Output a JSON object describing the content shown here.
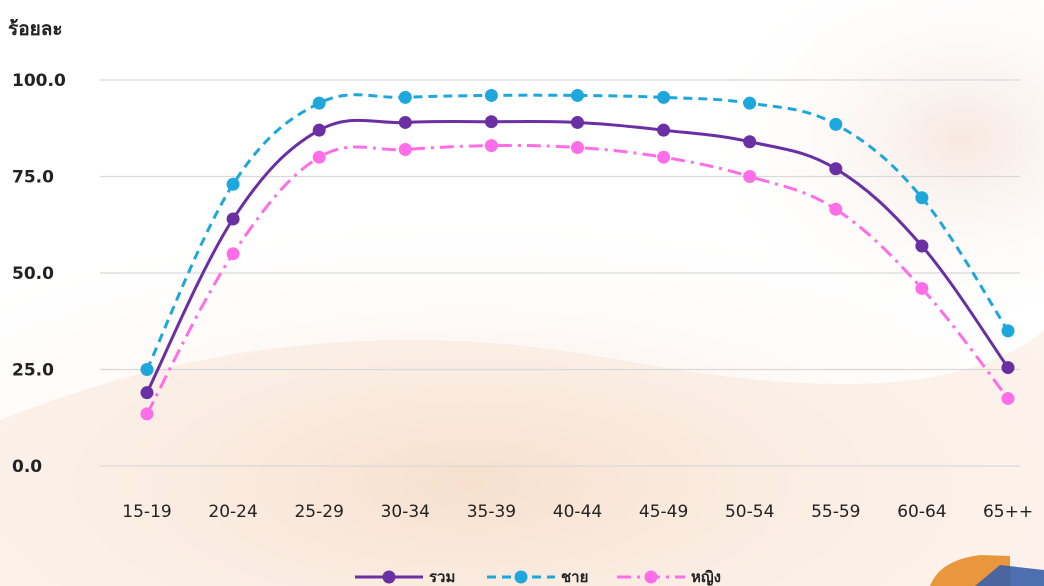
{
  "chart_data": {
    "type": "line",
    "ylabel": "ร้อยละ",
    "categories": [
      "15-19",
      "20-24",
      "25-29",
      "30-34",
      "35-39",
      "40-44",
      "45-49",
      "50-54",
      "55-59",
      "60-64",
      "65++"
    ],
    "ylim": [
      0,
      100
    ],
    "yticks": [
      0,
      25,
      50,
      75,
      100
    ],
    "ytick_labels": [
      "0.0",
      "25.0",
      "50.0",
      "75.0",
      "100.0"
    ],
    "grid": true,
    "legend_position": "bottom-center",
    "series": [
      {
        "name": "รวม",
        "color": "#6a2fa3",
        "dash": "solid",
        "values": [
          19,
          64,
          87,
          89,
          89.2,
          89,
          87,
          84,
          77,
          57,
          25.5
        ]
      },
      {
        "name": "ชาย",
        "color": "#1ea7dc",
        "dash": "dashed",
        "values": [
          25,
          73,
          94,
          95.5,
          96,
          96,
          95.5,
          94,
          88.5,
          69.5,
          35
        ]
      },
      {
        "name": "หญิง",
        "color": "#ff6ee8",
        "dash": "dashdot",
        "values": [
          13.5,
          55,
          80,
          82,
          83,
          82.5,
          80,
          75,
          66.5,
          46,
          17.5
        ]
      }
    ]
  }
}
